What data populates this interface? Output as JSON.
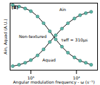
{
  "chart_data": {
    "type": "line",
    "title": "(B)",
    "x_label": "Angular modulation frequency - ω (s⁻¹)",
    "y_label": "Ain, Aquad (A.U.)",
    "log": "x",
    "grid": false,
    "tick_labels": "x",
    "xlim": [
      350,
      29000
    ],
    "ylim": [
      0,
      1
    ],
    "xticks": [
      {
        "value": 1000,
        "label": "10³"
      },
      {
        "value": 10000,
        "label": "10⁴"
      }
    ],
    "yticks": [],
    "x": [
      400,
      550,
      750,
      1000,
      1400,
      1900,
      2600,
      3500,
      4800,
      6500,
      9000,
      12000,
      16000,
      21000
    ],
    "series": [
      {
        "name": "Ain",
        "color": "#5fb8a8",
        "marker": "circle",
        "line_style": "solid",
        "values": [
          0.97,
          0.95,
          0.92,
          0.88,
          0.8,
          0.7,
          0.58,
          0.46,
          0.35,
          0.26,
          0.19,
          0.14,
          0.11,
          0.08
        ]
      },
      {
        "name": "Aquad",
        "color": "#5fb8a8",
        "marker": "circle",
        "line_style": "solid",
        "values": [
          0.06,
          0.08,
          0.11,
          0.15,
          0.22,
          0.31,
          0.42,
          0.52,
          0.62,
          0.7,
          0.77,
          0.82,
          0.85,
          0.87
        ]
      }
    ],
    "annotations": [
      {
        "text": "Ain",
        "x": 5000,
        "y": 0.9
      },
      {
        "text": "Aquad",
        "x": 2500,
        "y": 0.15
      },
      {
        "text": "τeff = 310μs",
        "x": 9000,
        "y": 0.45
      },
      {
        "text": "Non-textured",
        "x": 1100,
        "y": 0.5
      }
    ]
  }
}
